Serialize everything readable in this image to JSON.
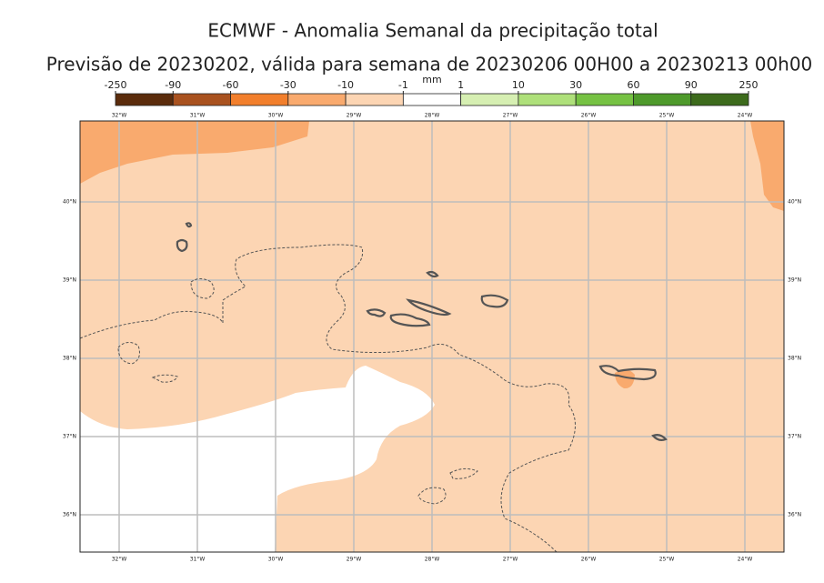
{
  "title": "ECMWF - Anomalia Semanal da precipitação total",
  "subtitle": "Previsão de 20230202, válida para semana de 20230206 00H00 a 20230213 00h00",
  "colorbar": {
    "unit": "mm",
    "ticks": [
      -250,
      -90,
      -60,
      -30,
      -10,
      -1,
      1,
      10,
      30,
      60,
      90,
      250
    ],
    "colors": [
      "#5b2c0c",
      "#a9521f",
      "#f27f2c",
      "#f9aa6e",
      "#fcd5b3",
      "#ffffff",
      "#d6efb2",
      "#aee07a",
      "#76c243",
      "#4e9a2b",
      "#3d6b1c"
    ]
  },
  "map": {
    "lon_ticks": [
      {
        "value": -32,
        "label": "32°W"
      },
      {
        "value": -31,
        "label": "31°W"
      },
      {
        "value": -30,
        "label": "30°W"
      },
      {
        "value": -29,
        "label": "29°W"
      },
      {
        "value": -28,
        "label": "28°W"
      },
      {
        "value": -27,
        "label": "27°W"
      },
      {
        "value": -26,
        "label": "26°W"
      },
      {
        "value": -25,
        "label": "25°W"
      },
      {
        "value": -24,
        "label": "24°W"
      }
    ],
    "lat_ticks": [
      {
        "value": 40,
        "label": "40°N"
      },
      {
        "value": 39,
        "label": "39°N"
      },
      {
        "value": 38,
        "label": "38°N"
      },
      {
        "value": 37,
        "label": "37°N"
      },
      {
        "value": 36,
        "label": "36°N"
      }
    ]
  }
}
